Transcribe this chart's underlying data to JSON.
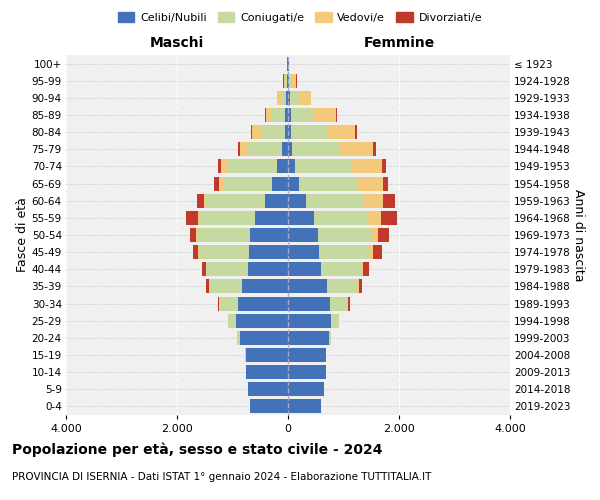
{
  "age_groups": [
    "0-4",
    "5-9",
    "10-14",
    "15-19",
    "20-24",
    "25-29",
    "30-34",
    "35-39",
    "40-44",
    "45-49",
    "50-54",
    "55-59",
    "60-64",
    "65-69",
    "70-74",
    "75-79",
    "80-84",
    "85-89",
    "90-94",
    "95-99",
    "100+"
  ],
  "birth_years": [
    "2019-2023",
    "2014-2018",
    "2009-2013",
    "2004-2008",
    "1999-2003",
    "1994-1998",
    "1989-1993",
    "1984-1988",
    "1979-1983",
    "1974-1978",
    "1969-1973",
    "1964-1968",
    "1959-1963",
    "1954-1958",
    "1949-1953",
    "1944-1948",
    "1939-1943",
    "1934-1938",
    "1929-1933",
    "1924-1928",
    "≤ 1923"
  ],
  "colors": {
    "celibi": "#4472b8",
    "coniugati": "#c5d9a0",
    "vedovi": "#f5c97a",
    "divorziati": "#c0392b"
  },
  "males": {
    "celibi": [
      680,
      720,
      760,
      760,
      860,
      930,
      900,
      820,
      720,
      700,
      680,
      600,
      420,
      280,
      200,
      100,
      60,
      50,
      30,
      20,
      10
    ],
    "coniugati": [
      0,
      0,
      0,
      10,
      50,
      150,
      350,
      600,
      750,
      900,
      950,
      1000,
      1050,
      900,
      900,
      620,
      430,
      250,
      90,
      30,
      5
    ],
    "vedovi": [
      0,
      0,
      0,
      0,
      0,
      0,
      0,
      5,
      5,
      15,
      20,
      30,
      50,
      70,
      100,
      150,
      150,
      100,
      70,
      30,
      5
    ],
    "divorziati": [
      0,
      0,
      0,
      0,
      0,
      10,
      20,
      50,
      80,
      100,
      120,
      200,
      120,
      80,
      60,
      30,
      20,
      10,
      5,
      5,
      0
    ]
  },
  "females": {
    "nubili": [
      600,
      650,
      680,
      680,
      730,
      780,
      760,
      700,
      600,
      560,
      540,
      460,
      320,
      200,
      130,
      80,
      60,
      50,
      30,
      20,
      10
    ],
    "coniugati": [
      0,
      0,
      0,
      5,
      40,
      130,
      320,
      560,
      720,
      900,
      950,
      980,
      1050,
      1050,
      1020,
      860,
      650,
      420,
      180,
      50,
      5
    ],
    "vedovi": [
      0,
      0,
      0,
      0,
      0,
      5,
      10,
      20,
      40,
      80,
      130,
      230,
      350,
      460,
      550,
      600,
      500,
      400,
      200,
      80,
      10
    ],
    "divorziati": [
      0,
      0,
      0,
      0,
      5,
      10,
      20,
      60,
      100,
      150,
      200,
      300,
      200,
      100,
      70,
      50,
      30,
      20,
      10,
      5,
      0
    ]
  },
  "title": "Popolazione per età, sesso e stato civile - 2024",
  "subtitle": "PROVINCIA DI ISERNIA - Dati ISTAT 1° gennaio 2024 - Elaborazione TUTTITALIA.IT",
  "xlabel_left": "Maschi",
  "xlabel_right": "Femmine",
  "ylabel_left": "Fasce di età",
  "ylabel_right": "Anni di nascita",
  "xlim": 4000,
  "legend_labels": [
    "Celibi/Nubili",
    "Coniugati/e",
    "Vedovi/e",
    "Divorziati/e"
  ],
  "background_color": "#f0f0f0"
}
